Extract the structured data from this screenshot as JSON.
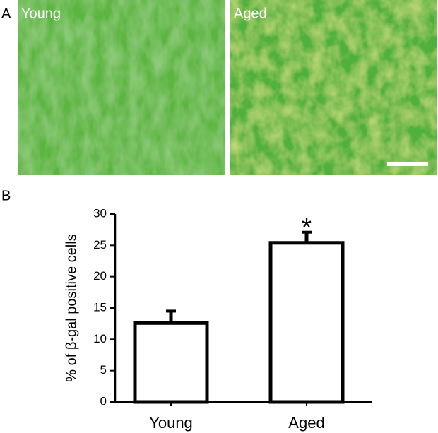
{
  "figure": {
    "panel_a_label": "A",
    "panel_b_label": "B",
    "image_labels": [
      "Young",
      "Aged"
    ]
  },
  "chart_data": {
    "type": "bar",
    "y_label": "% of β-gal positive cells",
    "categories": [
      "Young",
      "Aged"
    ],
    "values": [
      12.6,
      25.4
    ],
    "errors": [
      1.9,
      1.7
    ],
    "annotations": [
      null,
      "*"
    ],
    "color": "#ffffff",
    "ylim": [
      0,
      30
    ],
    "yticks": [
      0,
      5,
      10,
      15,
      20,
      25,
      30
    ],
    "grid": false
  }
}
